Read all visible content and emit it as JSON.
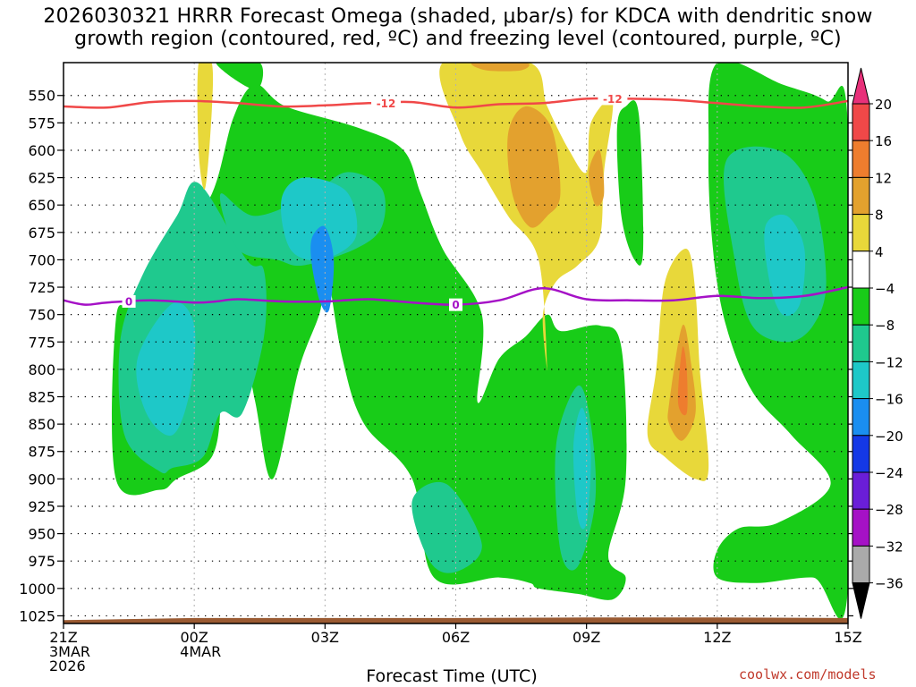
{
  "chart_data": {
    "type": "heatmap",
    "title_line1": "2026030321 HRRR Forecast Omega (shaded, μbar/s) for KDCA with dendritic snow",
    "title_line2": "growth region (contoured, red, ºC) and freezing level (contoured, purple, ºC)",
    "xlabel": "Forecast Time (UTC)",
    "credit": "coolwx.com/models",
    "x_unit": "hours since 21Z 3 Mar 2026",
    "xlim": [
      0,
      18
    ],
    "x_ticks": [
      {
        "x": 0,
        "lines": [
          "21Z",
          "3MAR",
          "2026"
        ]
      },
      {
        "x": 3,
        "lines": [
          "00Z",
          "4MAR"
        ]
      },
      {
        "x": 6,
        "lines": [
          "03Z"
        ]
      },
      {
        "x": 9,
        "lines": [
          "06Z"
        ]
      },
      {
        "x": 12,
        "lines": [
          "09Z"
        ]
      },
      {
        "x": 15,
        "lines": [
          "12Z"
        ]
      },
      {
        "x": 18,
        "lines": [
          "15Z"
        ]
      }
    ],
    "y_unit": "hPa",
    "ylim": [
      1032,
      520
    ],
    "y_ticks": [
      550,
      575,
      600,
      625,
      650,
      675,
      700,
      725,
      750,
      775,
      800,
      825,
      850,
      875,
      900,
      925,
      950,
      975,
      1000,
      1025
    ],
    "colorbar": {
      "labels": [
        "20",
        "16",
        "12",
        "8",
        "4",
        "−4",
        "−8",
        "−12",
        "−16",
        "−20",
        "−24",
        "−28",
        "−32",
        "−36"
      ],
      "colors": [
        "#e8317a",
        "#f04848",
        "#ee7d2e",
        "#e3a12e",
        "#e8d83a",
        "#ffffff",
        "#18cc18",
        "#1fc98e",
        "#1ec8c8",
        "#1a8ef0",
        "#1438e6",
        "#6a1ed8",
        "#a511c6",
        "#aaaaaa",
        "#000000"
      ]
    },
    "isotherm_minus12": {
      "label": "-12",
      "color": "#f04848",
      "points": [
        [
          0,
          560
        ],
        [
          1,
          561
        ],
        [
          2,
          556
        ],
        [
          3,
          555
        ],
        [
          4,
          557
        ],
        [
          5,
          560
        ],
        [
          6,
          559
        ],
        [
          7,
          557
        ],
        [
          8,
          556
        ],
        [
          9,
          561
        ],
        [
          10,
          558
        ],
        [
          11,
          557
        ],
        [
          12,
          553
        ],
        [
          13,
          553
        ],
        [
          14,
          554
        ],
        [
          15,
          557
        ],
        [
          16,
          560
        ],
        [
          17,
          561
        ],
        [
          18,
          555
        ]
      ]
    },
    "isotherm_zero": {
      "label": "0",
      "color": "#a511c6",
      "points": [
        [
          0,
          737
        ],
        [
          0.5,
          741
        ],
        [
          1,
          739
        ],
        [
          2,
          737
        ],
        [
          3,
          739
        ],
        [
          3.5,
          738
        ],
        [
          4,
          736
        ],
        [
          5,
          738
        ],
        [
          6,
          738
        ],
        [
          7,
          736
        ],
        [
          8,
          739
        ],
        [
          9,
          741
        ],
        [
          10,
          737
        ],
        [
          11,
          726
        ],
        [
          12,
          736
        ],
        [
          13,
          737
        ],
        [
          14,
          737
        ],
        [
          15,
          733
        ],
        [
          16,
          735
        ],
        [
          17,
          733
        ],
        [
          18,
          725
        ]
      ]
    },
    "contour_labels": [
      {
        "text": "-12",
        "x": 7.4,
        "y": 557,
        "color": "#f04848"
      },
      {
        "text": "-12",
        "x": 12.6,
        "y": 553,
        "color": "#f04848"
      },
      {
        "text": "0",
        "x": 1.5,
        "y": 738,
        "color": "#a511c6"
      },
      {
        "text": "0",
        "x": 9.0,
        "y": 741,
        "color": "#a511c6"
      }
    ],
    "regions": [
      {
        "level": "-4",
        "pts": [
          [
            1.2,
            755
          ],
          [
            1.6,
            740
          ],
          [
            2.5,
            690
          ],
          [
            3.4,
            640
          ],
          [
            3.9,
            570
          ],
          [
            4.4,
            540
          ],
          [
            5.1,
            560
          ],
          [
            6.8,
            580
          ],
          [
            7.8,
            600
          ],
          [
            8.2,
            640
          ],
          [
            8.7,
            690
          ],
          [
            9.6,
            750
          ],
          [
            9.5,
            830
          ],
          [
            10.0,
            790
          ],
          [
            10.6,
            770
          ],
          [
            11.1,
            750
          ],
          [
            11.4,
            765
          ],
          [
            12.3,
            760
          ],
          [
            12.8,
            780
          ],
          [
            12.9,
            900
          ],
          [
            12.5,
            970
          ],
          [
            12.9,
            990
          ],
          [
            12.6,
            1010
          ],
          [
            11.8,
            1005
          ],
          [
            10.9,
            1000
          ],
          [
            10.7,
            995
          ],
          [
            10.0,
            990
          ],
          [
            8.5,
            990
          ],
          [
            8.0,
            900
          ],
          [
            6.9,
            850
          ],
          [
            6.4,
            790
          ],
          [
            6.0,
            700
          ],
          [
            5.9,
            745
          ],
          [
            5.4,
            800
          ],
          [
            4.8,
            900
          ],
          [
            4.4,
            830
          ],
          [
            4.0,
            750
          ],
          [
            3.7,
            730
          ],
          [
            3.5,
            760
          ],
          [
            3.6,
            830
          ],
          [
            3.4,
            880
          ],
          [
            2.6,
            900
          ],
          [
            2.2,
            910
          ],
          [
            1.2,
            900
          ]
        ]
      },
      {
        "level": "-4",
        "pts": [
          [
            12.9,
            560
          ],
          [
            13.2,
            567
          ],
          [
            13.3,
            690
          ],
          [
            13.1,
            700
          ],
          [
            12.8,
            660
          ],
          [
            12.7,
            580
          ]
        ]
      },
      {
        "level": "-4",
        "pts": [
          [
            15.0,
            520
          ],
          [
            16.5,
            540
          ],
          [
            17.5,
            555
          ],
          [
            18.0,
            580
          ],
          [
            18.0,
            1000
          ],
          [
            17.2,
            990
          ],
          [
            15.9,
            995
          ],
          [
            15.0,
            990
          ],
          [
            15.0,
            965
          ],
          [
            15.5,
            945
          ],
          [
            16.4,
            940
          ],
          [
            17.6,
            905
          ],
          [
            16.7,
            860
          ],
          [
            15.8,
            820
          ],
          [
            15.2,
            760
          ],
          [
            14.9,
            690
          ],
          [
            14.8,
            600
          ]
        ]
      },
      {
        "level": "-4",
        "pts": [
          [
            3.5,
            520
          ],
          [
            4.5,
            520
          ],
          [
            4.4,
            545
          ]
        ]
      },
      {
        "level": "-8",
        "pts": [
          [
            1.3,
            775
          ],
          [
            1.8,
            715
          ],
          [
            2.6,
            660
          ],
          [
            3.1,
            630
          ],
          [
            4.2,
            700
          ],
          [
            4.6,
            710
          ],
          [
            4.6,
            770
          ],
          [
            4.1,
            840
          ],
          [
            3.6,
            840
          ],
          [
            3.2,
            880
          ],
          [
            2.5,
            890
          ],
          [
            2.2,
            893
          ],
          [
            1.4,
            860
          ]
        ]
      },
      {
        "level": "-8",
        "pts": [
          [
            3.6,
            640
          ],
          [
            4.4,
            660
          ],
          [
            5.7,
            640
          ],
          [
            6.5,
            620
          ],
          [
            7.3,
            635
          ],
          [
            7.3,
            670
          ],
          [
            6.7,
            690
          ],
          [
            5.5,
            705
          ],
          [
            4.9,
            700
          ],
          [
            4.0,
            690
          ]
        ]
      },
      {
        "level": "-8",
        "pts": [
          [
            8.0,
            920
          ],
          [
            8.8,
            905
          ],
          [
            9.6,
            960
          ],
          [
            9.0,
            985
          ],
          [
            8.4,
            975
          ]
        ]
      },
      {
        "level": "-8",
        "pts": [
          [
            11.3,
            870
          ],
          [
            11.8,
            815
          ],
          [
            12.1,
            850
          ],
          [
            12.2,
            920
          ],
          [
            11.8,
            980
          ],
          [
            11.4,
            965
          ]
        ]
      },
      {
        "level": "-8",
        "pts": [
          [
            15.2,
            610
          ],
          [
            16.4,
            600
          ],
          [
            17.2,
            640
          ],
          [
            17.5,
            720
          ],
          [
            17.2,
            760
          ],
          [
            16.6,
            775
          ],
          [
            15.8,
            760
          ],
          [
            15.4,
            700
          ]
        ]
      },
      {
        "level": "-12",
        "pts": [
          [
            1.7,
            790
          ],
          [
            2.5,
            740
          ],
          [
            3.0,
            760
          ],
          [
            2.9,
            820
          ],
          [
            2.5,
            860
          ],
          [
            1.9,
            840
          ]
        ]
      },
      {
        "level": "-12",
        "pts": [
          [
            5.0,
            645
          ],
          [
            5.5,
            625
          ],
          [
            6.5,
            638
          ],
          [
            6.7,
            680
          ],
          [
            5.9,
            700
          ],
          [
            5.2,
            690
          ]
        ]
      },
      {
        "level": "-12",
        "pts": [
          [
            16.1,
            670
          ],
          [
            16.6,
            660
          ],
          [
            17.0,
            690
          ],
          [
            16.9,
            740
          ],
          [
            16.5,
            750
          ],
          [
            16.2,
            720
          ]
        ]
      },
      {
        "level": "-12",
        "pts": [
          [
            11.7,
            870
          ],
          [
            11.9,
            835
          ],
          [
            12.1,
            875
          ],
          [
            12.0,
            940
          ],
          [
            11.8,
            935
          ]
        ]
      },
      {
        "level": "-12",
        "pts": [
          [
            2.1,
            780
          ],
          [
            2.6,
            780
          ],
          [
            2.7,
            840
          ],
          [
            2.3,
            850
          ]
        ]
      },
      {
        "level": "-16",
        "pts": [
          [
            5.7,
            680
          ],
          [
            6.0,
            670
          ],
          [
            6.2,
            700
          ],
          [
            6.1,
            745
          ],
          [
            5.9,
            740
          ],
          [
            5.7,
            705
          ]
        ]
      },
      {
        "level": "4",
        "pts": [
          [
            3.1,
            520
          ],
          [
            3.4,
            520
          ],
          [
            3.4,
            565
          ],
          [
            3.25,
            635
          ],
          [
            3.1,
            600
          ]
        ]
      },
      {
        "level": "4",
        "pts": [
          [
            8.7,
            520
          ],
          [
            10.7,
            520
          ],
          [
            11.1,
            560
          ],
          [
            11.6,
            600
          ],
          [
            12.0,
            620
          ],
          [
            12.1,
            575
          ],
          [
            12.6,
            555
          ],
          [
            12.4,
            620
          ],
          [
            12.3,
            680
          ],
          [
            11.8,
            705
          ],
          [
            11.3,
            720
          ],
          [
            11.0,
            750
          ],
          [
            11.1,
            800
          ],
          [
            10.9,
            700
          ],
          [
            10.2,
            660
          ],
          [
            9.6,
            620
          ],
          [
            9.1,
            585
          ]
        ]
      },
      {
        "level": "8",
        "pts": [
          [
            10.2,
            585
          ],
          [
            10.6,
            560
          ],
          [
            11.2,
            580
          ],
          [
            11.4,
            640
          ],
          [
            11.1,
            660
          ],
          [
            10.7,
            670
          ],
          [
            10.3,
            640
          ]
        ]
      },
      {
        "level": "8",
        "pts": [
          [
            12.05,
            620
          ],
          [
            12.3,
            600
          ],
          [
            12.4,
            640
          ],
          [
            12.2,
            650
          ]
        ]
      },
      {
        "level": "8",
        "pts": [
          [
            9.4,
            520
          ],
          [
            10.6,
            520
          ],
          [
            10.5,
            527
          ],
          [
            9.7,
            527
          ]
        ]
      },
      {
        "level": "4",
        "pts": [
          [
            13.8,
            720
          ],
          [
            14.3,
            690
          ],
          [
            14.5,
            730
          ],
          [
            14.6,
            800
          ],
          [
            14.8,
            890
          ],
          [
            14.5,
            900
          ],
          [
            13.8,
            880
          ],
          [
            13.4,
            860
          ],
          [
            13.6,
            800
          ]
        ]
      },
      {
        "level": "8",
        "pts": [
          [
            13.9,
            830
          ],
          [
            14.2,
            760
          ],
          [
            14.4,
            795
          ],
          [
            14.5,
            840
          ],
          [
            14.2,
            865
          ],
          [
            13.9,
            850
          ]
        ]
      },
      {
        "level": "12",
        "pts": [
          [
            14.1,
            830
          ],
          [
            14.2,
            780
          ],
          [
            14.3,
            800
          ],
          [
            14.3,
            840
          ]
        ]
      }
    ]
  }
}
